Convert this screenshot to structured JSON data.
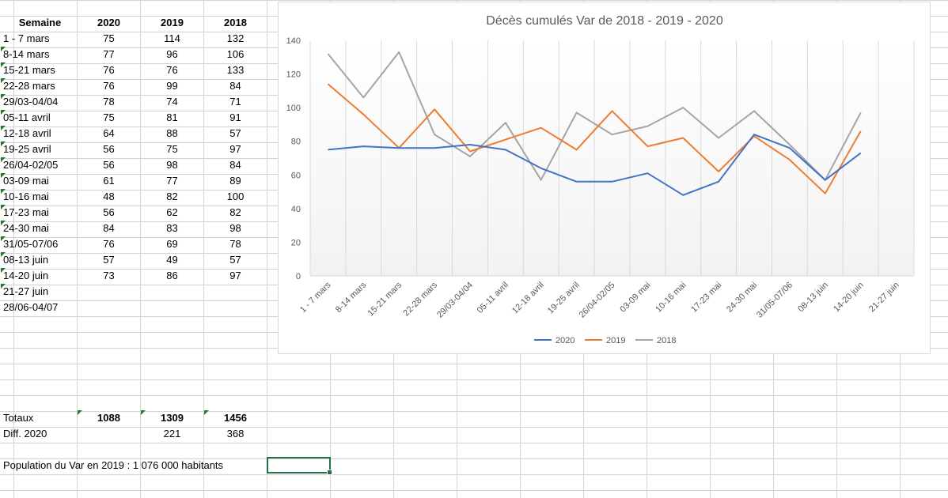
{
  "table": {
    "headers": [
      "Semaine",
      "2020",
      "2019",
      "2018"
    ],
    "rows": [
      {
        "week": "1 - 7 mars",
        "v2020": "75",
        "v2019": "114",
        "v2018": "132"
      },
      {
        "week": "8-14 mars",
        "v2020": "77",
        "v2019": "96",
        "v2018": "106"
      },
      {
        "week": "15-21 mars",
        "v2020": "76",
        "v2019": "76",
        "v2018": "133"
      },
      {
        "week": "22-28 mars",
        "v2020": "76",
        "v2019": "99",
        "v2018": "84"
      },
      {
        "week": "29/03-04/04",
        "v2020": "78",
        "v2019": "74",
        "v2018": "71"
      },
      {
        "week": "05-11 avril",
        "v2020": "75",
        "v2019": "81",
        "v2018": "91"
      },
      {
        "week": "12-18 avril",
        "v2020": "64",
        "v2019": "88",
        "v2018": "57"
      },
      {
        "week": "19-25 avril",
        "v2020": "56",
        "v2019": "75",
        "v2018": "97"
      },
      {
        "week": "26/04-02/05",
        "v2020": "56",
        "v2019": "98",
        "v2018": "84"
      },
      {
        "week": "03-09 mai",
        "v2020": "61",
        "v2019": "77",
        "v2018": "89"
      },
      {
        "week": "10-16 mai",
        "v2020": "48",
        "v2019": "82",
        "v2018": "100"
      },
      {
        "week": "17-23 mai",
        "v2020": "56",
        "v2019": "62",
        "v2018": "82"
      },
      {
        "week": "24-30 mai",
        "v2020": "84",
        "v2019": "83",
        "v2018": "98"
      },
      {
        "week": "31/05-07/06",
        "v2020": "76",
        "v2019": "69",
        "v2018": "78"
      },
      {
        "week": "08-13 juin",
        "v2020": "57",
        "v2019": "49",
        "v2018": "57"
      },
      {
        "week": "14-20 juin",
        "v2020": "73",
        "v2019": "86",
        "v2018": "97"
      },
      {
        "week": "21-27 juin",
        "v2020": "",
        "v2019": "",
        "v2018": ""
      },
      {
        "week": "28/06-04/07",
        "v2020": "",
        "v2019": "",
        "v2018": ""
      }
    ]
  },
  "totals": {
    "label": "Totaux",
    "v2020": "1088",
    "v2019": "1309",
    "v2018": "1456"
  },
  "diff": {
    "label": "Diff. 2020",
    "v2019": "221",
    "v2018": "368"
  },
  "population": "Population du Var en 2019 : 1 076 000 habitants",
  "colors": {
    "s2020": "#4472c4",
    "s2019": "#ed7d31",
    "s2018": "#a5a5a5",
    "selection": "#217346",
    "flag": "#1e7d32"
  },
  "chart_data": {
    "type": "line",
    "title": "Décès cumulés Var de 2018 - 2019 - 2020",
    "categories": [
      "1 - 7 mars",
      "8-14 mars",
      "15-21 mars",
      "22-28 mars",
      "29/03-04/04",
      "05-11 avril",
      "12-18 avril",
      "19-25 avril",
      "26/04-02/05",
      "03-09 mai",
      "10-16 mai",
      "17-23 mai",
      "24-30 mai",
      "31/05-07/06",
      "08-13 juin",
      "14-20 juin",
      "21-27 juin"
    ],
    "series": [
      {
        "name": "2020",
        "color": "#4472c4",
        "values": [
          75,
          77,
          76,
          76,
          78,
          75,
          64,
          56,
          56,
          61,
          48,
          56,
          84,
          76,
          57,
          73,
          null
        ]
      },
      {
        "name": "2019",
        "color": "#ed7d31",
        "values": [
          114,
          96,
          76,
          99,
          74,
          81,
          88,
          75,
          98,
          77,
          82,
          62,
          83,
          69,
          49,
          86,
          null
        ]
      },
      {
        "name": "2018",
        "color": "#a5a5a5",
        "values": [
          132,
          106,
          133,
          84,
          71,
          91,
          57,
          97,
          84,
          89,
          100,
          82,
          98,
          78,
          57,
          97,
          null
        ]
      }
    ],
    "yticks": [
      "0",
      "20",
      "40",
      "60",
      "80",
      "100",
      "120",
      "140"
    ],
    "ylim": [
      0,
      140
    ],
    "grid": "vertical",
    "legend": "bottom"
  }
}
